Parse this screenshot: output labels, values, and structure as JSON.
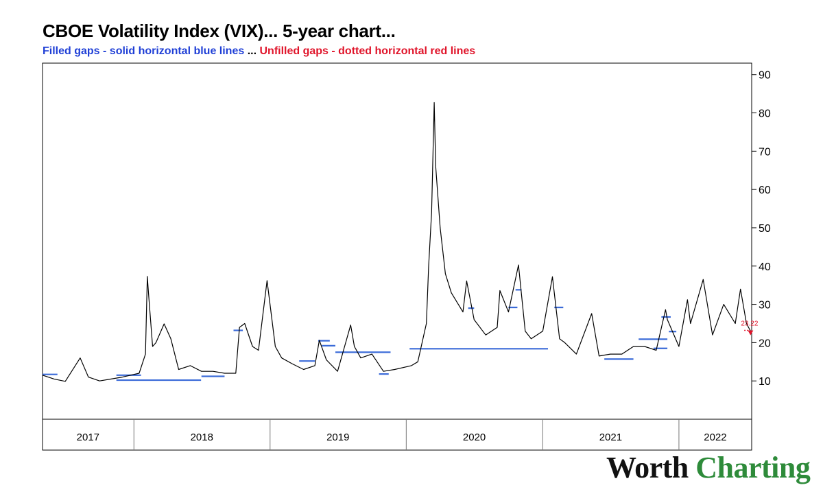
{
  "header": {
    "title": "CBOE Volatility Index (VIX)... 5-year chart...",
    "subtitle_blue": "Filled gaps - solid horizontal blue lines",
    "subtitle_sep": " ... ",
    "subtitle_red": "Unfilled gaps - dotted horizontal red lines"
  },
  "branding": {
    "word1": "Worth",
    "word2": "Charting"
  },
  "colors": {
    "price": "#000000",
    "filled_gap": "#3a6ad8",
    "unfilled_gap": "#e0142a",
    "frame": "#000000"
  },
  "chart_data": {
    "type": "line",
    "title": "CBOE Volatility Index (VIX)... 5-year chart...",
    "ylim": [
      0,
      93
    ],
    "yticks": [
      10,
      20,
      30,
      40,
      50,
      60,
      70,
      80,
      90
    ],
    "xlim": [
      "2017-05-01",
      "2022-07-15"
    ],
    "year_labels": [
      {
        "label": "2017",
        "from": "2017-05-01",
        "to": "2017-12-31"
      },
      {
        "label": "2018",
        "from": "2018-01-01",
        "to": "2018-12-31"
      },
      {
        "label": "2019",
        "from": "2019-01-01",
        "to": "2019-12-31"
      },
      {
        "label": "2020",
        "from": "2020-01-01",
        "to": "2020-12-31"
      },
      {
        "label": "2021",
        "from": "2021-01-01",
        "to": "2021-12-31"
      },
      {
        "label": "2022",
        "from": "2022-01-01",
        "to": "2022-07-15"
      }
    ],
    "series": [
      {
        "x": [
          "2017-05-01",
          "2017-06-01",
          "2017-07-01",
          "2017-08-10",
          "2017-09-01",
          "2017-10-01",
          "2017-11-01",
          "2017-12-01",
          "2018-01-15",
          "2018-02-01",
          "2018-02-06",
          "2018-02-09",
          "2018-02-20",
          "2018-03-01",
          "2018-03-23",
          "2018-04-10",
          "2018-05-01",
          "2018-06-01",
          "2018-07-01",
          "2018-08-01",
          "2018-09-01",
          "2018-10-01",
          "2018-10-11",
          "2018-10-25",
          "2018-11-15",
          "2018-12-01",
          "2018-12-24",
          "2019-01-15",
          "2019-02-01",
          "2019-03-01",
          "2019-04-01",
          "2019-05-01",
          "2019-05-13",
          "2019-06-01",
          "2019-07-01",
          "2019-08-05",
          "2019-08-15",
          "2019-09-01",
          "2019-10-01",
          "2019-11-01",
          "2019-12-01",
          "2020-01-15",
          "2020-02-01",
          "2020-02-24",
          "2020-03-01",
          "2020-03-09",
          "2020-03-16",
          "2020-03-20",
          "2020-04-01",
          "2020-04-15",
          "2020-05-01",
          "2020-06-01",
          "2020-06-11",
          "2020-07-01",
          "2020-08-01",
          "2020-09-01",
          "2020-09-08",
          "2020-10-01",
          "2020-10-28",
          "2020-11-15",
          "2020-12-01",
          "2021-01-01",
          "2021-01-27",
          "2021-02-15",
          "2021-03-01",
          "2021-04-01",
          "2021-05-12",
          "2021-06-01",
          "2021-07-01",
          "2021-08-01",
          "2021-09-01",
          "2021-10-01",
          "2021-11-01",
          "2021-11-26",
          "2021-12-01",
          "2022-01-01",
          "2022-01-24",
          "2022-02-01",
          "2022-03-07",
          "2022-04-01",
          "2022-05-01",
          "2022-06-01",
          "2022-06-15",
          "2022-07-01",
          "2022-07-12"
        ],
        "y": [
          11.5,
          10.5,
          9.9,
          16.0,
          11.0,
          10.0,
          10.5,
          11.0,
          12.0,
          17.0,
          37.3,
          33.0,
          19.0,
          20.0,
          24.9,
          21.0,
          13.0,
          14.0,
          12.5,
          12.5,
          12.0,
          12.0,
          24.0,
          25.0,
          19.0,
          18.0,
          36.2,
          19.0,
          16.0,
          14.5,
          13.0,
          14.0,
          20.6,
          15.5,
          12.5,
          24.6,
          19.0,
          16.0,
          17.0,
          12.5,
          13.0,
          14.0,
          15.0,
          25.0,
          40.0,
          54.0,
          82.7,
          66.0,
          50.0,
          38.0,
          33.0,
          28.0,
          36.1,
          26.0,
          22.0,
          24.0,
          33.6,
          28.0,
          40.3,
          23.0,
          21.0,
          23.0,
          37.2,
          21.0,
          20.0,
          17.0,
          27.6,
          16.5,
          17.0,
          17.0,
          19.0,
          19.0,
          18.0,
          28.6,
          26.0,
          19.0,
          31.2,
          25.0,
          36.5,
          22.0,
          30.0,
          25.0,
          34.0,
          25.0,
          23.0
        ],
        "last_label": "23.22"
      }
    ],
    "filled_gaps": [
      {
        "y": 11.7,
        "from": "2017-05-01",
        "to": "2017-06-10"
      },
      {
        "y": 11.5,
        "from": "2017-11-15",
        "to": "2018-01-20"
      },
      {
        "y": 10.2,
        "from": "2017-11-15",
        "to": "2018-06-30"
      },
      {
        "y": 11.2,
        "from": "2018-07-01",
        "to": "2018-09-01"
      },
      {
        "y": 23.2,
        "from": "2018-09-25",
        "to": "2018-10-20"
      },
      {
        "y": 15.2,
        "from": "2019-03-20",
        "to": "2019-05-01"
      },
      {
        "y": 20.5,
        "from": "2019-05-10",
        "to": "2019-06-10"
      },
      {
        "y": 19.2,
        "from": "2019-05-20",
        "to": "2019-06-25"
      },
      {
        "y": 17.5,
        "from": "2019-06-25",
        "to": "2019-11-20"
      },
      {
        "y": 11.8,
        "from": "2019-10-20",
        "to": "2019-11-15"
      },
      {
        "y": 18.4,
        "from": "2020-01-10",
        "to": "2021-01-15"
      },
      {
        "y": 29.0,
        "from": "2020-06-15",
        "to": "2020-07-01"
      },
      {
        "y": 29.2,
        "from": "2020-10-01",
        "to": "2020-10-25"
      },
      {
        "y": 33.8,
        "from": "2020-10-20",
        "to": "2020-11-05"
      },
      {
        "y": 29.2,
        "from": "2021-02-01",
        "to": "2021-02-25"
      },
      {
        "y": 15.7,
        "from": "2021-06-15",
        "to": "2021-09-01"
      },
      {
        "y": 20.9,
        "from": "2021-09-15",
        "to": "2021-12-01"
      },
      {
        "y": 18.5,
        "from": "2021-10-25",
        "to": "2021-12-01"
      },
      {
        "y": 26.7,
        "from": "2021-11-15",
        "to": "2021-12-10"
      },
      {
        "y": 22.9,
        "from": "2021-12-05",
        "to": "2021-12-25"
      }
    ],
    "unfilled_gaps": [
      {
        "y": 23.2,
        "from": "2022-06-25",
        "to": "2022-07-12"
      }
    ],
    "grid": false,
    "legend": "none"
  }
}
